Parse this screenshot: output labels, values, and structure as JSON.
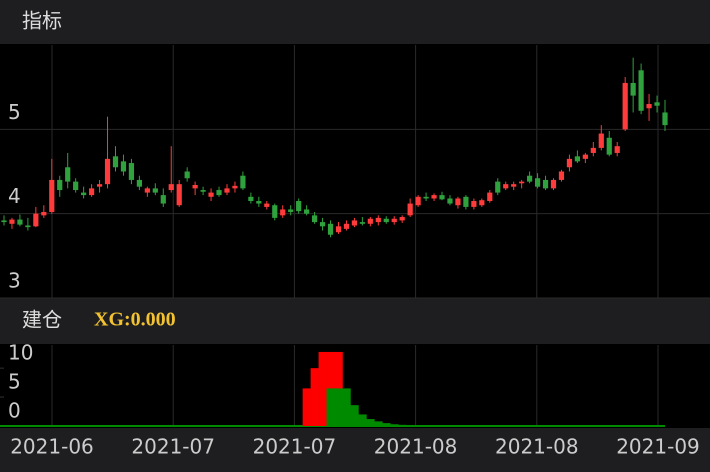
{
  "chart_data": [
    {
      "type": "candlestick",
      "title": "指标",
      "up_color": "#ff3b3b",
      "down_color": "#2fa23e",
      "ylim": [
        3,
        6
      ],
      "yticks": [
        3,
        4,
        5
      ],
      "grid": true,
      "ohlc": [
        [
          3.92,
          3.98,
          3.86,
          3.9
        ],
        [
          3.88,
          3.95,
          3.82,
          3.93
        ],
        [
          3.93,
          3.99,
          3.85,
          3.87
        ],
        [
          3.86,
          3.95,
          3.8,
          3.84
        ],
        [
          3.85,
          4.08,
          3.84,
          4.0
        ],
        [
          3.98,
          4.1,
          3.95,
          4.02
        ],
        [
          4.02,
          4.65,
          4.0,
          4.4
        ],
        [
          4.4,
          4.45,
          4.2,
          4.28
        ],
        [
          4.55,
          4.72,
          4.3,
          4.38
        ],
        [
          4.38,
          4.42,
          4.25,
          4.28
        ],
        [
          4.25,
          4.32,
          4.18,
          4.22
        ],
        [
          4.22,
          4.35,
          4.2,
          4.3
        ],
        [
          4.32,
          4.4,
          4.25,
          4.35
        ],
        [
          4.35,
          5.15,
          4.3,
          4.65
        ],
        [
          4.68,
          4.8,
          4.5,
          4.55
        ],
        [
          4.62,
          4.7,
          4.45,
          4.5
        ],
        [
          4.6,
          4.65,
          4.35,
          4.4
        ],
        [
          4.4,
          4.45,
          4.28,
          4.32
        ],
        [
          4.25,
          4.32,
          4.2,
          4.3
        ],
        [
          4.3,
          4.36,
          4.22,
          4.25
        ],
        [
          4.22,
          4.3,
          4.08,
          4.12
        ],
        [
          4.28,
          4.8,
          4.25,
          4.35
        ],
        [
          4.1,
          4.4,
          4.08,
          4.35
        ],
        [
          4.5,
          4.55,
          4.38,
          4.42
        ],
        [
          4.3,
          4.38,
          4.22,
          4.34
        ],
        [
          4.28,
          4.32,
          4.22,
          4.26
        ],
        [
          4.2,
          4.3,
          4.15,
          4.25
        ],
        [
          4.28,
          4.32,
          4.2,
          4.22
        ],
        [
          4.25,
          4.35,
          4.22,
          4.3
        ],
        [
          4.3,
          4.38,
          4.25,
          4.33
        ],
        [
          4.45,
          4.5,
          4.28,
          4.3
        ],
        [
          4.2,
          4.25,
          4.12,
          4.15
        ],
        [
          4.15,
          4.2,
          4.08,
          4.12
        ],
        [
          4.08,
          4.15,
          4.05,
          4.12
        ],
        [
          4.1,
          4.12,
          3.92,
          3.95
        ],
        [
          3.98,
          4.1,
          3.95,
          4.05
        ],
        [
          4.05,
          4.1,
          3.98,
          4.02
        ],
        [
          4.15,
          4.18,
          4.0,
          4.03
        ],
        [
          4.05,
          4.1,
          3.98,
          4.0
        ],
        [
          3.98,
          4.02,
          3.88,
          3.9
        ],
        [
          3.9,
          3.95,
          3.8,
          3.85
        ],
        [
          3.88,
          3.92,
          3.72,
          3.75
        ],
        [
          3.78,
          3.9,
          3.76,
          3.85
        ],
        [
          3.82,
          3.92,
          3.8,
          3.88
        ],
        [
          3.86,
          3.95,
          3.84,
          3.92
        ],
        [
          3.9,
          3.96,
          3.86,
          3.88
        ],
        [
          3.88,
          3.96,
          3.85,
          3.94
        ],
        [
          3.9,
          3.98,
          3.86,
          3.95
        ],
        [
          3.94,
          3.97,
          3.88,
          3.9
        ],
        [
          3.9,
          3.97,
          3.87,
          3.94
        ],
        [
          3.92,
          3.98,
          3.89,
          3.96
        ],
        [
          3.98,
          4.18,
          3.96,
          4.12
        ],
        [
          4.1,
          4.22,
          4.08,
          4.2
        ],
        [
          4.2,
          4.25,
          4.15,
          4.18
        ],
        [
          4.18,
          4.24,
          4.15,
          4.22
        ],
        [
          4.22,
          4.26,
          4.16,
          4.17
        ],
        [
          4.18,
          4.22,
          4.1,
          4.12
        ],
        [
          4.1,
          4.2,
          4.06,
          4.18
        ],
        [
          4.2,
          4.22,
          4.05,
          4.08
        ],
        [
          4.08,
          4.18,
          4.05,
          4.15
        ],
        [
          4.1,
          4.18,
          4.08,
          4.16
        ],
        [
          4.15,
          4.28,
          4.13,
          4.25
        ],
        [
          4.38,
          4.42,
          4.22,
          4.25
        ],
        [
          4.3,
          4.38,
          4.28,
          4.35
        ],
        [
          4.32,
          4.38,
          4.28,
          4.35
        ],
        [
          4.36,
          4.4,
          4.3,
          4.38
        ],
        [
          4.45,
          4.5,
          4.36,
          4.38
        ],
        [
          4.42,
          4.48,
          4.3,
          4.32
        ],
        [
          4.4,
          4.45,
          4.28,
          4.3
        ],
        [
          4.3,
          4.42,
          4.28,
          4.4
        ],
        [
          4.4,
          4.52,
          4.38,
          4.5
        ],
        [
          4.55,
          4.7,
          4.5,
          4.65
        ],
        [
          4.68,
          4.75,
          4.6,
          4.62
        ],
        [
          4.65,
          4.72,
          4.6,
          4.7
        ],
        [
          4.72,
          4.85,
          4.68,
          4.78
        ],
        [
          4.78,
          5.05,
          4.75,
          4.95
        ],
        [
          4.9,
          4.98,
          4.68,
          4.7
        ],
        [
          4.72,
          4.85,
          4.68,
          4.8
        ],
        [
          5.0,
          5.62,
          4.98,
          5.55
        ],
        [
          5.55,
          5.85,
          5.2,
          5.4
        ],
        [
          5.7,
          5.78,
          5.18,
          5.22
        ],
        [
          5.25,
          5.42,
          5.1,
          5.3
        ],
        [
          5.32,
          5.4,
          5.2,
          5.28
        ],
        [
          5.2,
          5.35,
          4.98,
          5.05
        ]
      ]
    },
    {
      "type": "bar",
      "title": "建仓",
      "annotation": "XG:0.000",
      "ylim": [
        0,
        14
      ],
      "yticks": [
        0,
        5,
        10
      ],
      "x_labels": [
        "2021-06",
        "2021-07",
        "2021-07",
        "2021-08",
        "2021-08",
        "2021-09"
      ],
      "series": [
        {
          "color": "#ff0000",
          "values": [
            0,
            0,
            0,
            0,
            0,
            0,
            0,
            0,
            0,
            0,
            0,
            0,
            0,
            0,
            0,
            0,
            0,
            0,
            0,
            0,
            0,
            0,
            0,
            0,
            0,
            0,
            0,
            0,
            0,
            0,
            0,
            0,
            0,
            0,
            0,
            0,
            0,
            0,
            6.5,
            10,
            12.8,
            12.8,
            12.8,
            0,
            0,
            0,
            0,
            0,
            0,
            0,
            0,
            0,
            0,
            0,
            0,
            0,
            0,
            0,
            0,
            0,
            0,
            0,
            0,
            0,
            0,
            0,
            0,
            0,
            0,
            0,
            0,
            0,
            0,
            0,
            0,
            0,
            0,
            0,
            0,
            0,
            0,
            0,
            0,
            0
          ]
        },
        {
          "color": "#008a00",
          "values": [
            0,
            0,
            0,
            0,
            0,
            0,
            0,
            0,
            0,
            0,
            0,
            0,
            0,
            0,
            0,
            0,
            0,
            0,
            0,
            0,
            0,
            0,
            0,
            0,
            0,
            0,
            0,
            0,
            0,
            0,
            0,
            0,
            0,
            0,
            0,
            0,
            0,
            0,
            0,
            0,
            0,
            6.5,
            6.5,
            6.5,
            3.6,
            2,
            1.2,
            0.8,
            0.5,
            0.3,
            0.2,
            0.15,
            0.1,
            0,
            0,
            0,
            0,
            0,
            0,
            0,
            0,
            0,
            0,
            0,
            0,
            0,
            0,
            0,
            0,
            0,
            0,
            0,
            0,
            0,
            0,
            0,
            0,
            0,
            0,
            0,
            0,
            0,
            0,
            0
          ]
        }
      ]
    }
  ]
}
